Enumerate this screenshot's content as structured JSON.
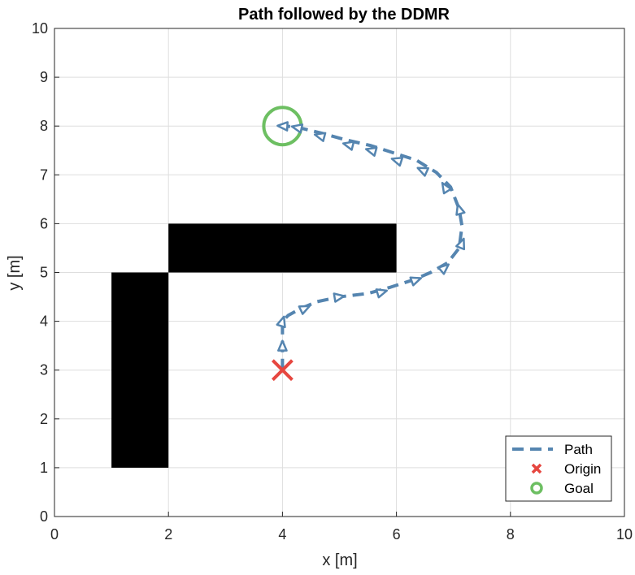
{
  "chart_data": {
    "type": "line",
    "title": "Path followed by the DDMR",
    "xlabel": "x [m]",
    "ylabel": "y [m]",
    "xlim": [
      0,
      10
    ],
    "ylim": [
      0,
      10
    ],
    "xticks": [
      "0",
      "2",
      "4",
      "6",
      "8",
      "10"
    ],
    "yticks": [
      "0",
      "1",
      "2",
      "3",
      "4",
      "5",
      "6",
      "7",
      "8",
      "9",
      "10"
    ],
    "grid": true,
    "legend_position": "bottom-right",
    "obstacles": [
      {
        "x": [
          1,
          2
        ],
        "y": [
          1,
          5
        ]
      },
      {
        "x": [
          2,
          6
        ],
        "y": [
          5,
          6
        ]
      }
    ],
    "series": [
      {
        "name": "Path",
        "style": "dashed",
        "color": "#5585b0",
        "x": [
          4.0,
          4.0,
          4.0,
          4.0,
          4.1,
          4.3,
          4.6,
          5.0,
          5.5,
          5.9,
          6.3,
          6.6,
          6.9,
          7.1,
          7.15,
          7.1,
          6.95,
          6.7,
          6.35,
          5.95,
          5.55,
          5.1,
          4.7,
          4.35,
          4.15,
          4.0
        ],
        "y": [
          3.0,
          3.5,
          3.75,
          4.0,
          4.12,
          4.25,
          4.4,
          4.5,
          4.57,
          4.7,
          4.85,
          5.0,
          5.2,
          5.5,
          5.95,
          6.3,
          6.75,
          7.05,
          7.3,
          7.45,
          7.6,
          7.72,
          7.85,
          7.95,
          7.99,
          8.0
        ]
      },
      {
        "name": "Origin",
        "marker": "x",
        "color": "#e6463f",
        "x": [
          4
        ],
        "y": [
          3
        ]
      },
      {
        "name": "Goal",
        "marker": "o",
        "color": "#6dbf62",
        "x": [
          4
        ],
        "y": [
          8
        ]
      }
    ],
    "arrow_points": [
      [
        4.0,
        3.5
      ],
      [
        4.0,
        4.0
      ],
      [
        4.4,
        4.27
      ],
      [
        5.0,
        4.5
      ],
      [
        5.75,
        4.6
      ],
      [
        6.35,
        4.85
      ],
      [
        6.85,
        5.1
      ],
      [
        7.15,
        5.6
      ],
      [
        7.1,
        6.3
      ],
      [
        6.85,
        6.75
      ],
      [
        6.45,
        7.1
      ],
      [
        6.0,
        7.3
      ],
      [
        5.55,
        7.5
      ],
      [
        5.15,
        7.62
      ],
      [
        4.65,
        7.8
      ],
      [
        4.25,
        7.97
      ],
      [
        4.0,
        8.0
      ]
    ]
  }
}
